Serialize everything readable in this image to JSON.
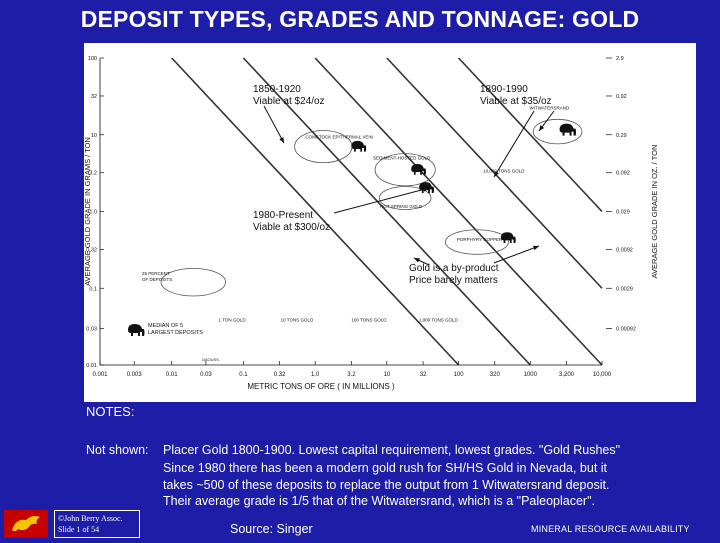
{
  "slide": {
    "title": "DEPOSIT TYPES, GRADES AND TONNAGE:  GOLD"
  },
  "chart_data": {
    "type": "scatter",
    "xlabel": "METRIC TONS OF ORE  ( IN MILLIONS )",
    "ylabel_left": "AVERAGE  GOLD  GRADE IN GRAMS / TON",
    "ylabel_right": "AVERAGE  GOLD  GRADE IN OZ. / TON",
    "x_scale": "log",
    "y_scale": "log",
    "xlim": [
      0.001,
      10000
    ],
    "ylim": [
      0.01,
      100
    ],
    "x_ticks": [
      {
        "value": 0.001,
        "label": "0.001"
      },
      {
        "value": 0.003,
        "label": "0.003"
      },
      {
        "value": 0.01,
        "label": "0.01"
      },
      {
        "value": 0.03,
        "label": "0.03"
      },
      {
        "value": 0.1,
        "label": "0.1"
      },
      {
        "value": 0.32,
        "label": "0.32"
      },
      {
        "value": 1,
        "label": "1.0"
      },
      {
        "value": 3.2,
        "label": "3.2"
      },
      {
        "value": 10,
        "label": "10"
      },
      {
        "value": 32,
        "label": "32"
      },
      {
        "value": 100,
        "label": "100"
      },
      {
        "value": 320,
        "label": "320"
      },
      {
        "value": 1000,
        "label": "1000"
      },
      {
        "value": 3200,
        "label": "3,200"
      },
      {
        "value": 10000,
        "label": "10,000"
      }
    ],
    "y_ticks_left": [
      {
        "value": 100,
        "label": "100"
      },
      {
        "value": 32,
        "label": "32"
      },
      {
        "value": 10,
        "label": "10"
      },
      {
        "value": 3.2,
        "label": "3.2"
      },
      {
        "value": 1,
        "label": "1.0"
      },
      {
        "value": 0.32,
        "label": "0.32"
      },
      {
        "value": 0.1,
        "label": "0.1"
      },
      {
        "value": 0.03,
        "label": "0.03"
      },
      {
        "value": 0.01,
        "label": "0.01"
      }
    ],
    "y_ticks_right": [
      {
        "value": 100,
        "label": "2.9"
      },
      {
        "value": 32,
        "label": "0.92"
      },
      {
        "value": 10,
        "label": "0.29"
      },
      {
        "value": 3.2,
        "label": "0.092"
      },
      {
        "value": 1,
        "label": "0.029"
      },
      {
        "value": 0.32,
        "label": "0.0092"
      },
      {
        "value": 0.1,
        "label": "0.0029"
      },
      {
        "value": 0.03,
        "label": "0.00092"
      }
    ],
    "tonnage_lines": [
      {
        "label": "1 TON GOLD",
        "tons": 1
      },
      {
        "label": "10 TONS GOLD",
        "tons": 10
      },
      {
        "label": "100 TONS GOLD",
        "tons": 100
      },
      {
        "label": "1,000 TONS GOLD",
        "tons": 1000
      },
      {
        "label": "10,000 TONS GOLD",
        "tons": 10000
      }
    ],
    "deposit_types": [
      {
        "label": "WITWATERSRAND",
        "x": 2400,
        "y": 11,
        "rx": 0.34,
        "ry": 0.16
      },
      {
        "label": "COMSTOCK EPITHERMAL VEIN",
        "x": 1.3,
        "y": 7,
        "rx": 0.4,
        "ry": 0.21
      },
      {
        "label": "SEDIMENT-HOSTED GOLD",
        "x": 18,
        "y": 3.5,
        "rx": 0.42,
        "ry": 0.21
      },
      {
        "label": "HOT SPRING GOLD",
        "x": 18,
        "y": 1.5,
        "rx": 0.36,
        "ry": 0.15
      },
      {
        "label": "PORPHYRY COPPER",
        "x": 180,
        "y": 0.4,
        "rx": 0.44,
        "ry": 0.16
      },
      {
        "label": "25 PERCENT OF DEPOSITS",
        "x": 0.02,
        "y": 0.12,
        "rx": 0.45,
        "ry": 0.18
      }
    ],
    "legend": [
      {
        "label": "MEDIAN OF 5 LARGEST DEPOSITS"
      },
      {
        "label": "25 PERCENT OF DEPOSITS"
      }
    ],
    "annotations": [
      {
        "label": "1850-1920",
        "sub": "Viable at $24/oz"
      },
      {
        "label": "1890-1990",
        "sub": "Viable at $35/oz"
      },
      {
        "label": "1980-Present",
        "sub": "Viable at $300/oz"
      },
      {
        "label": "Gold is a by-product",
        "sub": "Price barely matters"
      }
    ],
    "grid": false
  },
  "notes": {
    "title": "NOTES:",
    "label": "Not shown:",
    "lines": [
      "Placer Gold 1800-1900.  Lowest capital requirement, lowest grades. \"Gold Rushes\"",
      "Since 1980 there has been a modern gold rush for SH/HS Gold in Nevada, but it",
      "takes ~500 of these deposits to replace the output from 1 Witwatersrand deposit.",
      "Their average grade is 1/5 that of the Witwatersrand, which is a \"Paleoplacer\"."
    ]
  },
  "footer": {
    "copyright_line1": "©John Berry Assoc.",
    "copyright_line2": "Slide 1 of 54",
    "source": "Source: Singer",
    "right_label": "MINERAL RESOURCE AVAILABILITY"
  },
  "colors": {
    "background": "#1d1da8",
    "logo": "#c60000",
    "chart_ink": "#111111"
  }
}
